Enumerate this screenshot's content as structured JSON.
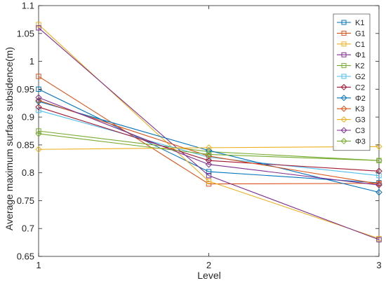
{
  "chart_data": {
    "type": "line",
    "title": "",
    "xlabel": "Level",
    "ylabel": "Average maximum surface subsidence(m)",
    "x": [
      1,
      2,
      3
    ],
    "xticks": [
      "1",
      "2",
      "3"
    ],
    "xlim": [
      1,
      3
    ],
    "ylim": [
      0.65,
      1.1
    ],
    "yticks": [
      "0.65",
      "0.7",
      "0.75",
      "0.8",
      "0.85",
      "0.9",
      "0.95",
      "1",
      "1.05",
      "1.1"
    ],
    "grid": false,
    "legend_position": "top-right",
    "series": [
      {
        "name": "K1",
        "values": [
          0.95,
          0.802,
          0.782
        ],
        "color": "#0072BD",
        "marker": "square"
      },
      {
        "name": "G1",
        "values": [
          0.973,
          0.78,
          0.781
        ],
        "color": "#D95319",
        "marker": "square"
      },
      {
        "name": "C1",
        "values": [
          1.066,
          0.785,
          0.682
        ],
        "color": "#EDB120",
        "marker": "square"
      },
      {
        "name": "Φ1",
        "values": [
          1.06,
          0.795,
          0.68
        ],
        "color": "#7E2F8E",
        "marker": "square"
      },
      {
        "name": "K2",
        "values": [
          0.875,
          0.838,
          0.822
        ],
        "color": "#77AC30",
        "marker": "square"
      },
      {
        "name": "G2",
        "values": [
          0.912,
          0.828,
          0.795
        ],
        "color": "#4DBEEE",
        "marker": "square"
      },
      {
        "name": "C2",
        "values": [
          0.918,
          0.822,
          0.803
        ],
        "color": "#A2142F",
        "marker": "diamond"
      },
      {
        "name": "Φ2",
        "values": [
          0.928,
          0.84,
          0.765
        ],
        "color": "#0072BD",
        "marker": "diamond"
      },
      {
        "name": "K3",
        "values": [
          0.93,
          0.83,
          0.78
        ],
        "color": "#D95319",
        "marker": "diamond"
      },
      {
        "name": "G3",
        "values": [
          0.842,
          0.845,
          0.847
        ],
        "color": "#EDB120",
        "marker": "diamond"
      },
      {
        "name": "C3",
        "values": [
          0.935,
          0.815,
          0.778
        ],
        "color": "#7E2F8E",
        "marker": "diamond"
      },
      {
        "name": "Φ3",
        "values": [
          0.87,
          0.833,
          0.822
        ],
        "color": "#77AC30",
        "marker": "diamond"
      }
    ]
  }
}
